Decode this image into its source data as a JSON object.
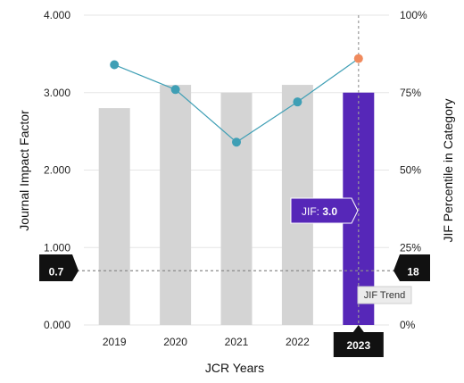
{
  "chart_data": {
    "type": "bar",
    "categories": [
      "2019",
      "2020",
      "2021",
      "2022",
      "2023"
    ],
    "series": [
      {
        "values": [
          2.8,
          3.1,
          3.0,
          3.1,
          3.0
        ],
        "axis": "left"
      },
      {
        "values": [
          84,
          76,
          59,
          72,
          86
        ],
        "axis": "right",
        "render": "line"
      }
    ],
    "highlight_category": "2023",
    "left_axis": {
      "title": "Journal Impact Factor",
      "range": [
        0,
        4
      ],
      "ticks": [
        "0.000",
        "1.000",
        "2.000",
        "3.000",
        "4.000"
      ]
    },
    "right_axis": {
      "title": "JIF Percentile in Category",
      "range": [
        0,
        100
      ],
      "ticks": [
        "0%",
        "25%",
        "50%",
        "75%",
        "100%"
      ]
    },
    "xlabel": "JCR Years",
    "reference_line": {
      "left_value": 0.7,
      "left_label": "0.7",
      "right_label": "18"
    },
    "tooltip": {
      "label": "JIF: ",
      "value": "3.0"
    },
    "legend_label": "JIF Trend",
    "grid": true,
    "colors": {
      "bar": "#d4d4d4",
      "bar_highlight": "#5627b8",
      "line": "#3f9fb5",
      "point": "#3f9fb5",
      "point_highlight": "#f08a5d",
      "callout_bg": "#111111"
    }
  }
}
